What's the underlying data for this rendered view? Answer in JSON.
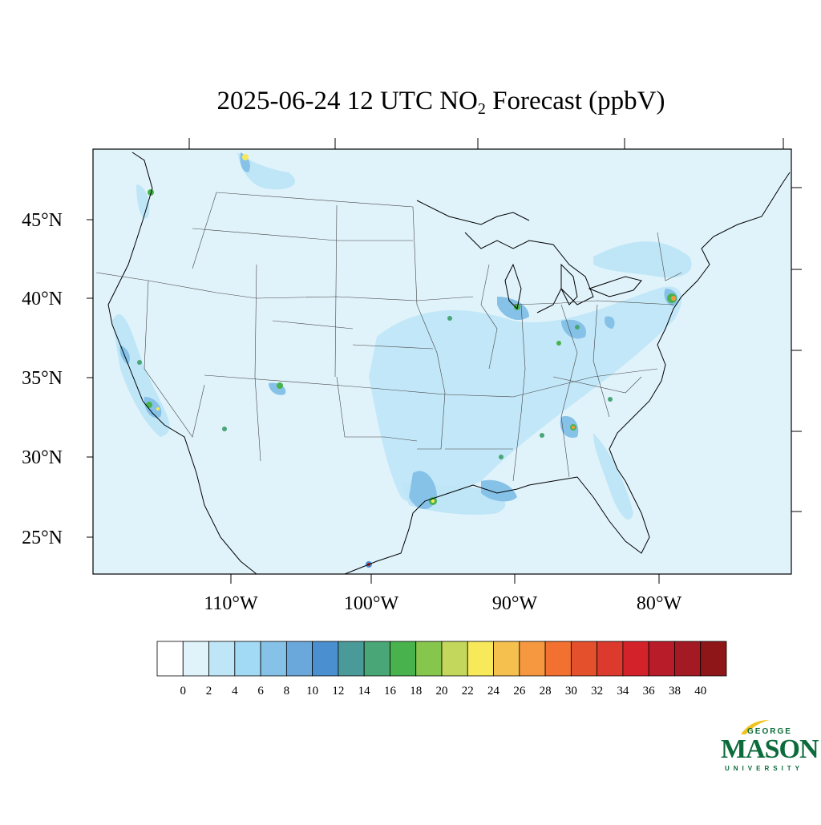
{
  "title": {
    "prefix": "2025-06-24 12 UTC NO",
    "subscript": "2",
    "suffix": " Forecast (ppbV)"
  },
  "latitude_labels": [
    "45°N",
    "40°N",
    "35°N",
    "30°N",
    "25°N"
  ],
  "longitude_labels": [
    "110°W",
    "100°W",
    "90°W",
    "80°W"
  ],
  "colorbar": {
    "ticks": [
      "0",
      "2",
      "4",
      "6",
      "8",
      "10",
      "12",
      "14",
      "16",
      "18",
      "20",
      "22",
      "24",
      "26",
      "28",
      "30",
      "32",
      "34",
      "36",
      "38",
      "40"
    ],
    "colors": [
      "#ffffff",
      "#e0f3fb",
      "#bfe6f7",
      "#a2d9f4",
      "#86c2e8",
      "#6aa8dc",
      "#4a8fcf",
      "#4a9a99",
      "#49a676",
      "#48b34c",
      "#86c64c",
      "#c2d75b",
      "#f7e95a",
      "#f6c04e",
      "#f69840",
      "#f27030",
      "#e4502c",
      "#db3a2c",
      "#d4222b",
      "#b81c28",
      "#a41a24",
      "#8e1619"
    ]
  },
  "logo": {
    "line1": "GEORGE",
    "line2": "MASON",
    "line3": "UNIVERSITY",
    "color": "#0b6b3a"
  },
  "colors": {
    "background_field": "#e0f3fb",
    "low_field": "#bfe6f7"
  }
}
